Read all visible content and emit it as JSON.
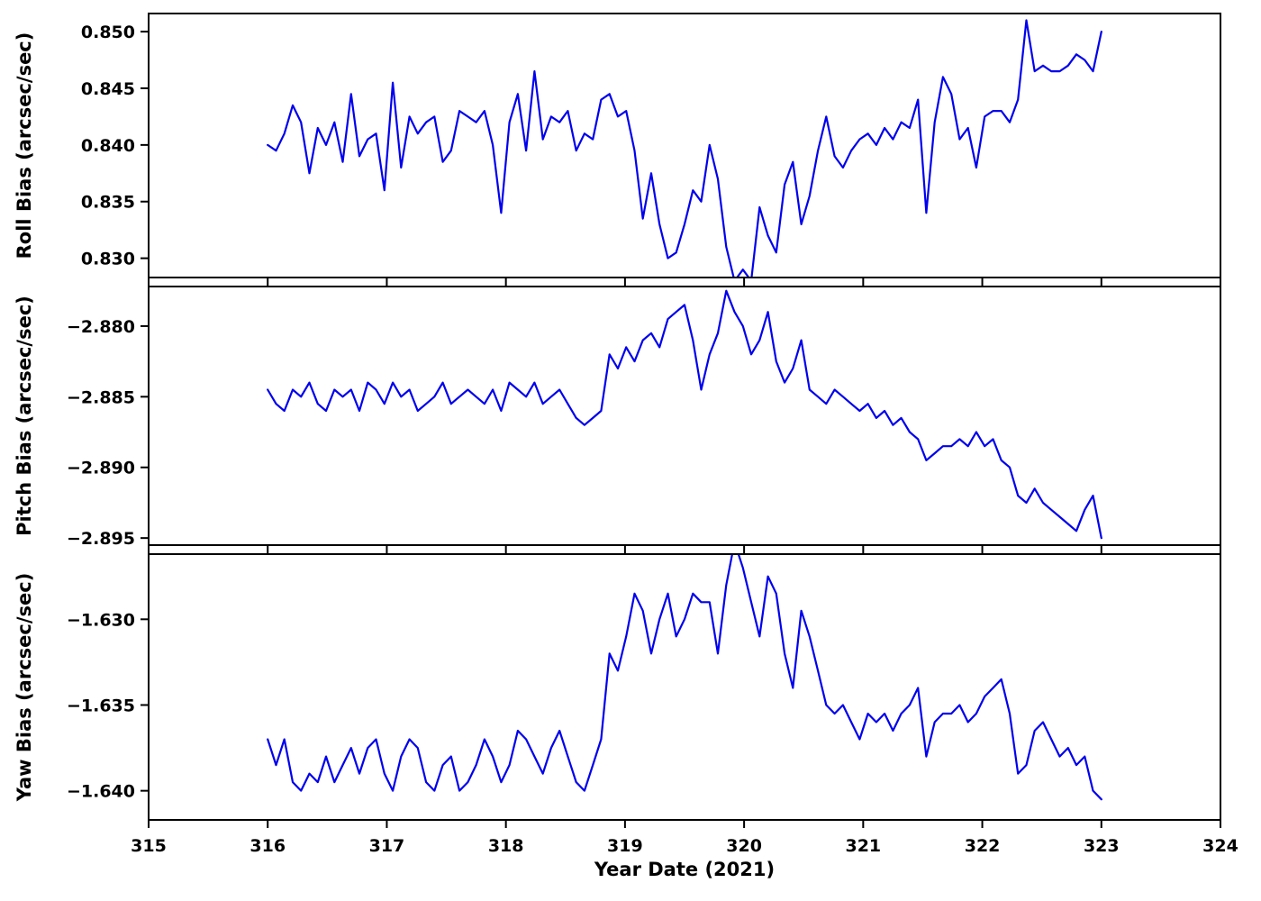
{
  "figure": {
    "background": "#FFFFFF",
    "line_color": "#0000EE",
    "spine_color": "#000000",
    "tick_color": "#000000"
  },
  "chart_data": {
    "type": "line",
    "title": "",
    "xlabel": "Year Date (2021)",
    "xlim": [
      315,
      324
    ],
    "xticks": [
      315,
      316,
      317,
      318,
      319,
      320,
      321,
      322,
      323,
      324
    ],
    "xtick_labels": [
      "315",
      "316",
      "317",
      "318",
      "319",
      "320",
      "321",
      "322",
      "323",
      "324"
    ],
    "grid": false,
    "legend": "none",
    "layout": "three vertically stacked line subplots sharing the x-axis",
    "x": [
      316,
      316.07,
      316.14,
      316.21,
      316.28,
      316.35,
      316.42,
      316.49,
      316.56,
      316.63,
      316.7,
      316.77,
      316.84,
      316.91,
      316.98,
      317.05,
      317.12,
      317.19,
      317.26,
      317.33,
      317.4,
      317.47,
      317.54,
      317.61,
      317.68,
      317.75,
      317.82,
      317.89,
      317.96,
      318.03,
      318.1,
      318.17,
      318.24,
      318.31,
      318.38,
      318.45,
      318.52,
      318.59,
      318.66,
      318.73,
      318.8,
      318.87,
      318.94,
      319.01,
      319.08,
      319.15,
      319.22,
      319.29,
      319.36,
      319.43,
      319.5,
      319.57,
      319.64,
      319.71,
      319.78,
      319.85,
      319.92,
      319.99,
      320.06,
      320.13,
      320.2,
      320.27,
      320.34,
      320.41,
      320.48,
      320.55,
      320.62,
      320.69,
      320.76,
      320.83,
      320.9,
      320.97,
      321.04,
      321.11,
      321.18,
      321.25,
      321.32,
      321.39,
      321.46,
      321.53,
      321.6,
      321.67,
      321.74,
      321.81,
      321.88,
      321.95,
      322.02,
      322.09,
      322.16,
      322.23,
      322.3,
      322.37,
      322.44,
      322.51,
      322.58,
      322.65,
      322.72,
      322.79,
      322.86,
      322.93,
      323
    ],
    "series": [
      {
        "name": "Roll Bias",
        "ylabel": "Roll Bias (arcsec/sec)",
        "ylim": [
          0.8283,
          0.8516
        ],
        "yticks": [
          0.83,
          0.835,
          0.84,
          0.845,
          0.85
        ],
        "ytick_labels": [
          "0.830",
          "0.835",
          "0.840",
          "0.845",
          "0.850"
        ],
        "values": [
          0.84,
          0.8395,
          0.841,
          0.8435,
          0.842,
          0.8375,
          0.8415,
          0.84,
          0.842,
          0.8385,
          0.8445,
          0.839,
          0.8405,
          0.841,
          0.836,
          0.8455,
          0.838,
          0.8425,
          0.841,
          0.842,
          0.8425,
          0.8385,
          0.8395,
          0.843,
          0.8425,
          0.842,
          0.843,
          0.84,
          0.834,
          0.842,
          0.8445,
          0.8395,
          0.8465,
          0.8405,
          0.8425,
          0.842,
          0.843,
          0.8395,
          0.841,
          0.8405,
          0.844,
          0.8445,
          0.8425,
          0.843,
          0.8395,
          0.8335,
          0.8375,
          0.833,
          0.83,
          0.8305,
          0.833,
          0.836,
          0.835,
          0.84,
          0.837,
          0.831,
          0.828,
          0.829,
          0.828,
          0.8345,
          0.832,
          0.8305,
          0.8365,
          0.8385,
          0.833,
          0.8355,
          0.8395,
          0.8425,
          0.839,
          0.838,
          0.8395,
          0.8405,
          0.841,
          0.84,
          0.8415,
          0.8405,
          0.842,
          0.8415,
          0.844,
          0.834,
          0.842,
          0.846,
          0.8445,
          0.8405,
          0.8415,
          0.838,
          0.8425,
          0.843,
          0.843,
          0.842,
          0.844,
          0.851,
          0.8465,
          0.847,
          0.8465,
          0.8465,
          0.847,
          0.848,
          0.8475,
          0.8465,
          0.85
        ]
      },
      {
        "name": "Pitch Bias",
        "ylabel": "Pitch Bias (arcsec/sec)",
        "ylim": [
          -2.8955,
          -2.8772
        ],
        "yticks": [
          -2.88,
          -2.885,
          -2.89,
          -2.895
        ],
        "ytick_labels": [
          "−2.880",
          "−2.885",
          "−2.890",
          "−2.895"
        ],
        "values": [
          -2.8845,
          -2.8855,
          -2.886,
          -2.8845,
          -2.885,
          -2.884,
          -2.8855,
          -2.886,
          -2.8845,
          -2.885,
          -2.8845,
          -2.886,
          -2.884,
          -2.8845,
          -2.8855,
          -2.884,
          -2.885,
          -2.8845,
          -2.886,
          -2.8855,
          -2.885,
          -2.884,
          -2.8855,
          -2.885,
          -2.8845,
          -2.885,
          -2.8855,
          -2.8845,
          -2.886,
          -2.884,
          -2.8845,
          -2.885,
          -2.884,
          -2.8855,
          -2.885,
          -2.8845,
          -2.8855,
          -2.8865,
          -2.887,
          -2.8865,
          -2.886,
          -2.882,
          -2.883,
          -2.8815,
          -2.8825,
          -2.881,
          -2.8805,
          -2.8815,
          -2.8795,
          -2.879,
          -2.8785,
          -2.881,
          -2.8845,
          -2.882,
          -2.8805,
          -2.8775,
          -2.879,
          -2.88,
          -2.882,
          -2.881,
          -2.879,
          -2.8825,
          -2.884,
          -2.883,
          -2.881,
          -2.8845,
          -2.885,
          -2.8855,
          -2.8845,
          -2.885,
          -2.8855,
          -2.886,
          -2.8855,
          -2.8865,
          -2.886,
          -2.887,
          -2.8865,
          -2.8875,
          -2.888,
          -2.8895,
          -2.889,
          -2.8885,
          -2.8885,
          -2.888,
          -2.8885,
          -2.8875,
          -2.8885,
          -2.888,
          -2.8895,
          -2.89,
          -2.892,
          -2.8925,
          -2.8915,
          -2.8925,
          -2.893,
          -2.8935,
          -2.894,
          -2.8945,
          -2.893,
          -2.892,
          -2.895
        ]
      },
      {
        "name": "Yaw Bias",
        "ylabel": "Yaw Bias (arcsec/sec)",
        "ylim": [
          -1.6417,
          -1.6262
        ],
        "yticks": [
          -1.63,
          -1.635,
          -1.64
        ],
        "ytick_labels": [
          "−1.630",
          "−1.635",
          "−1.640"
        ],
        "values": [
          -1.637,
          -1.6385,
          -1.637,
          -1.6395,
          -1.64,
          -1.639,
          -1.6395,
          -1.638,
          -1.6395,
          -1.6385,
          -1.6375,
          -1.639,
          -1.6375,
          -1.637,
          -1.639,
          -1.64,
          -1.638,
          -1.637,
          -1.6375,
          -1.6395,
          -1.64,
          -1.6385,
          -1.638,
          -1.64,
          -1.6395,
          -1.6385,
          -1.637,
          -1.638,
          -1.6395,
          -1.6385,
          -1.6365,
          -1.637,
          -1.638,
          -1.639,
          -1.6375,
          -1.6365,
          -1.638,
          -1.6395,
          -1.64,
          -1.6385,
          -1.637,
          -1.632,
          -1.633,
          -1.631,
          -1.6285,
          -1.6295,
          -1.632,
          -1.63,
          -1.6285,
          -1.631,
          -1.63,
          -1.6285,
          -1.629,
          -1.629,
          -1.632,
          -1.628,
          -1.6255,
          -1.627,
          -1.629,
          -1.631,
          -1.6275,
          -1.6285,
          -1.632,
          -1.634,
          -1.6295,
          -1.631,
          -1.633,
          -1.635,
          -1.6355,
          -1.635,
          -1.636,
          -1.637,
          -1.6355,
          -1.636,
          -1.6355,
          -1.6365,
          -1.6355,
          -1.635,
          -1.634,
          -1.638,
          -1.636,
          -1.6355,
          -1.6355,
          -1.635,
          -1.636,
          -1.6355,
          -1.6345,
          -1.634,
          -1.6335,
          -1.6355,
          -1.639,
          -1.6385,
          -1.6365,
          -1.636,
          -1.637,
          -1.638,
          -1.6375,
          -1.6385,
          -1.638,
          -1.64,
          -1.6405
        ]
      }
    ]
  }
}
